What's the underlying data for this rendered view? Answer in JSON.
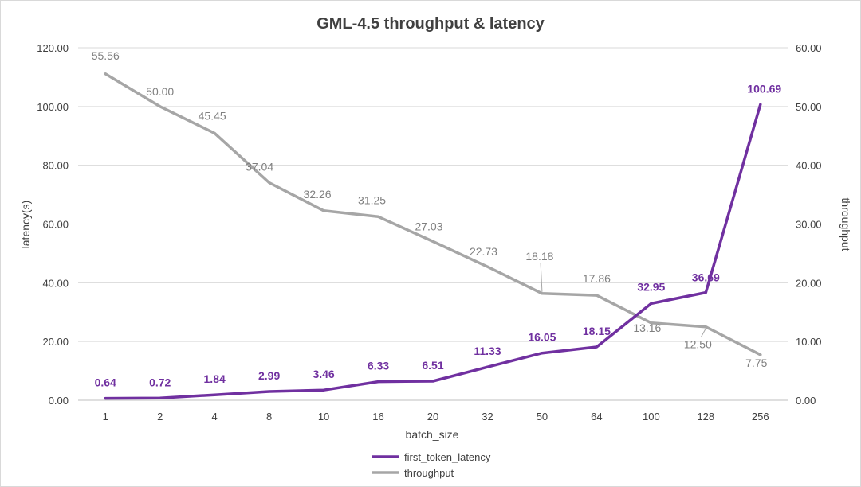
{
  "chart_data": {
    "type": "line",
    "title": "GML-4.5 throughput & latency",
    "xlabel": "batch_size",
    "ylabel_left": "latency(s)",
    "ylabel_right": "throughput",
    "categories": [
      "1",
      "2",
      "4",
      "8",
      "10",
      "16",
      "20",
      "32",
      "50",
      "64",
      "100",
      "128",
      "256"
    ],
    "y_left": {
      "range": [
        0,
        120
      ],
      "ticks": [
        "0.00",
        "20.00",
        "40.00",
        "60.00",
        "80.00",
        "100.00",
        "120.00"
      ]
    },
    "y_right": {
      "range": [
        0,
        60
      ],
      "ticks": [
        "0.00",
        "10.00",
        "20.00",
        "30.00",
        "40.00",
        "50.00",
        "60.00"
      ]
    },
    "grid": true,
    "legend_position": "bottom",
    "series": [
      {
        "name": "first_token_latency",
        "axis": "left",
        "color": "#7030a0",
        "values": [
          0.64,
          0.72,
          1.84,
          2.99,
          3.46,
          6.33,
          6.51,
          11.33,
          16.05,
          18.15,
          32.95,
          36.69,
          100.69
        ],
        "labels": [
          "0.64",
          "0.72",
          "1.84",
          "2.99",
          "3.46",
          "6.33",
          "6.51",
          "11.33",
          "16.05",
          "18.15",
          "32.95",
          "36.69",
          "100.69"
        ]
      },
      {
        "name": "throughput",
        "axis": "right",
        "color": "#a6a6a6",
        "values": [
          55.56,
          50.0,
          45.45,
          37.04,
          32.26,
          31.25,
          27.03,
          22.73,
          18.18,
          17.86,
          13.16,
          12.5,
          7.75
        ],
        "labels": [
          "55.56",
          "50.00",
          "45.45",
          "37.04",
          "32.26",
          "31.25",
          "27.03",
          "22.73",
          "18.18",
          "17.86",
          "13.16",
          "12.50",
          "7.75"
        ]
      }
    ]
  }
}
